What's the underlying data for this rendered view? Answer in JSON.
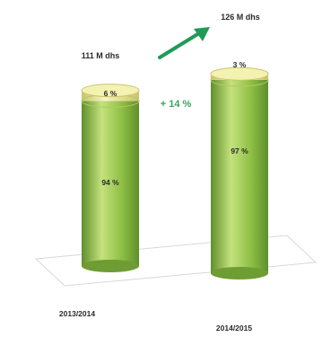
{
  "chart_data": {
    "type": "bar",
    "categories": [
      "2013/2014",
      "2014/2015"
    ],
    "totals": [
      111,
      126
    ],
    "total_labels": [
      "111 M dhs",
      "126 M dhs"
    ],
    "series": [
      {
        "values": [
          94,
          97
        ],
        "labels": [
          "94 %",
          "97 %"
        ]
      },
      {
        "values": [
          6,
          3
        ],
        "labels": [
          "6 %",
          "3 %"
        ]
      }
    ],
    "growth_label": "+ 14 %",
    "colors": {
      "body": "#8fbf45",
      "body_dark": "#5f8f2b",
      "body_light": "#c4e27e",
      "cap": "#f2f0a6",
      "cap_dark": "#c9c46a",
      "arrow": "#1f9b57",
      "floor": "#d8d8d8"
    }
  }
}
